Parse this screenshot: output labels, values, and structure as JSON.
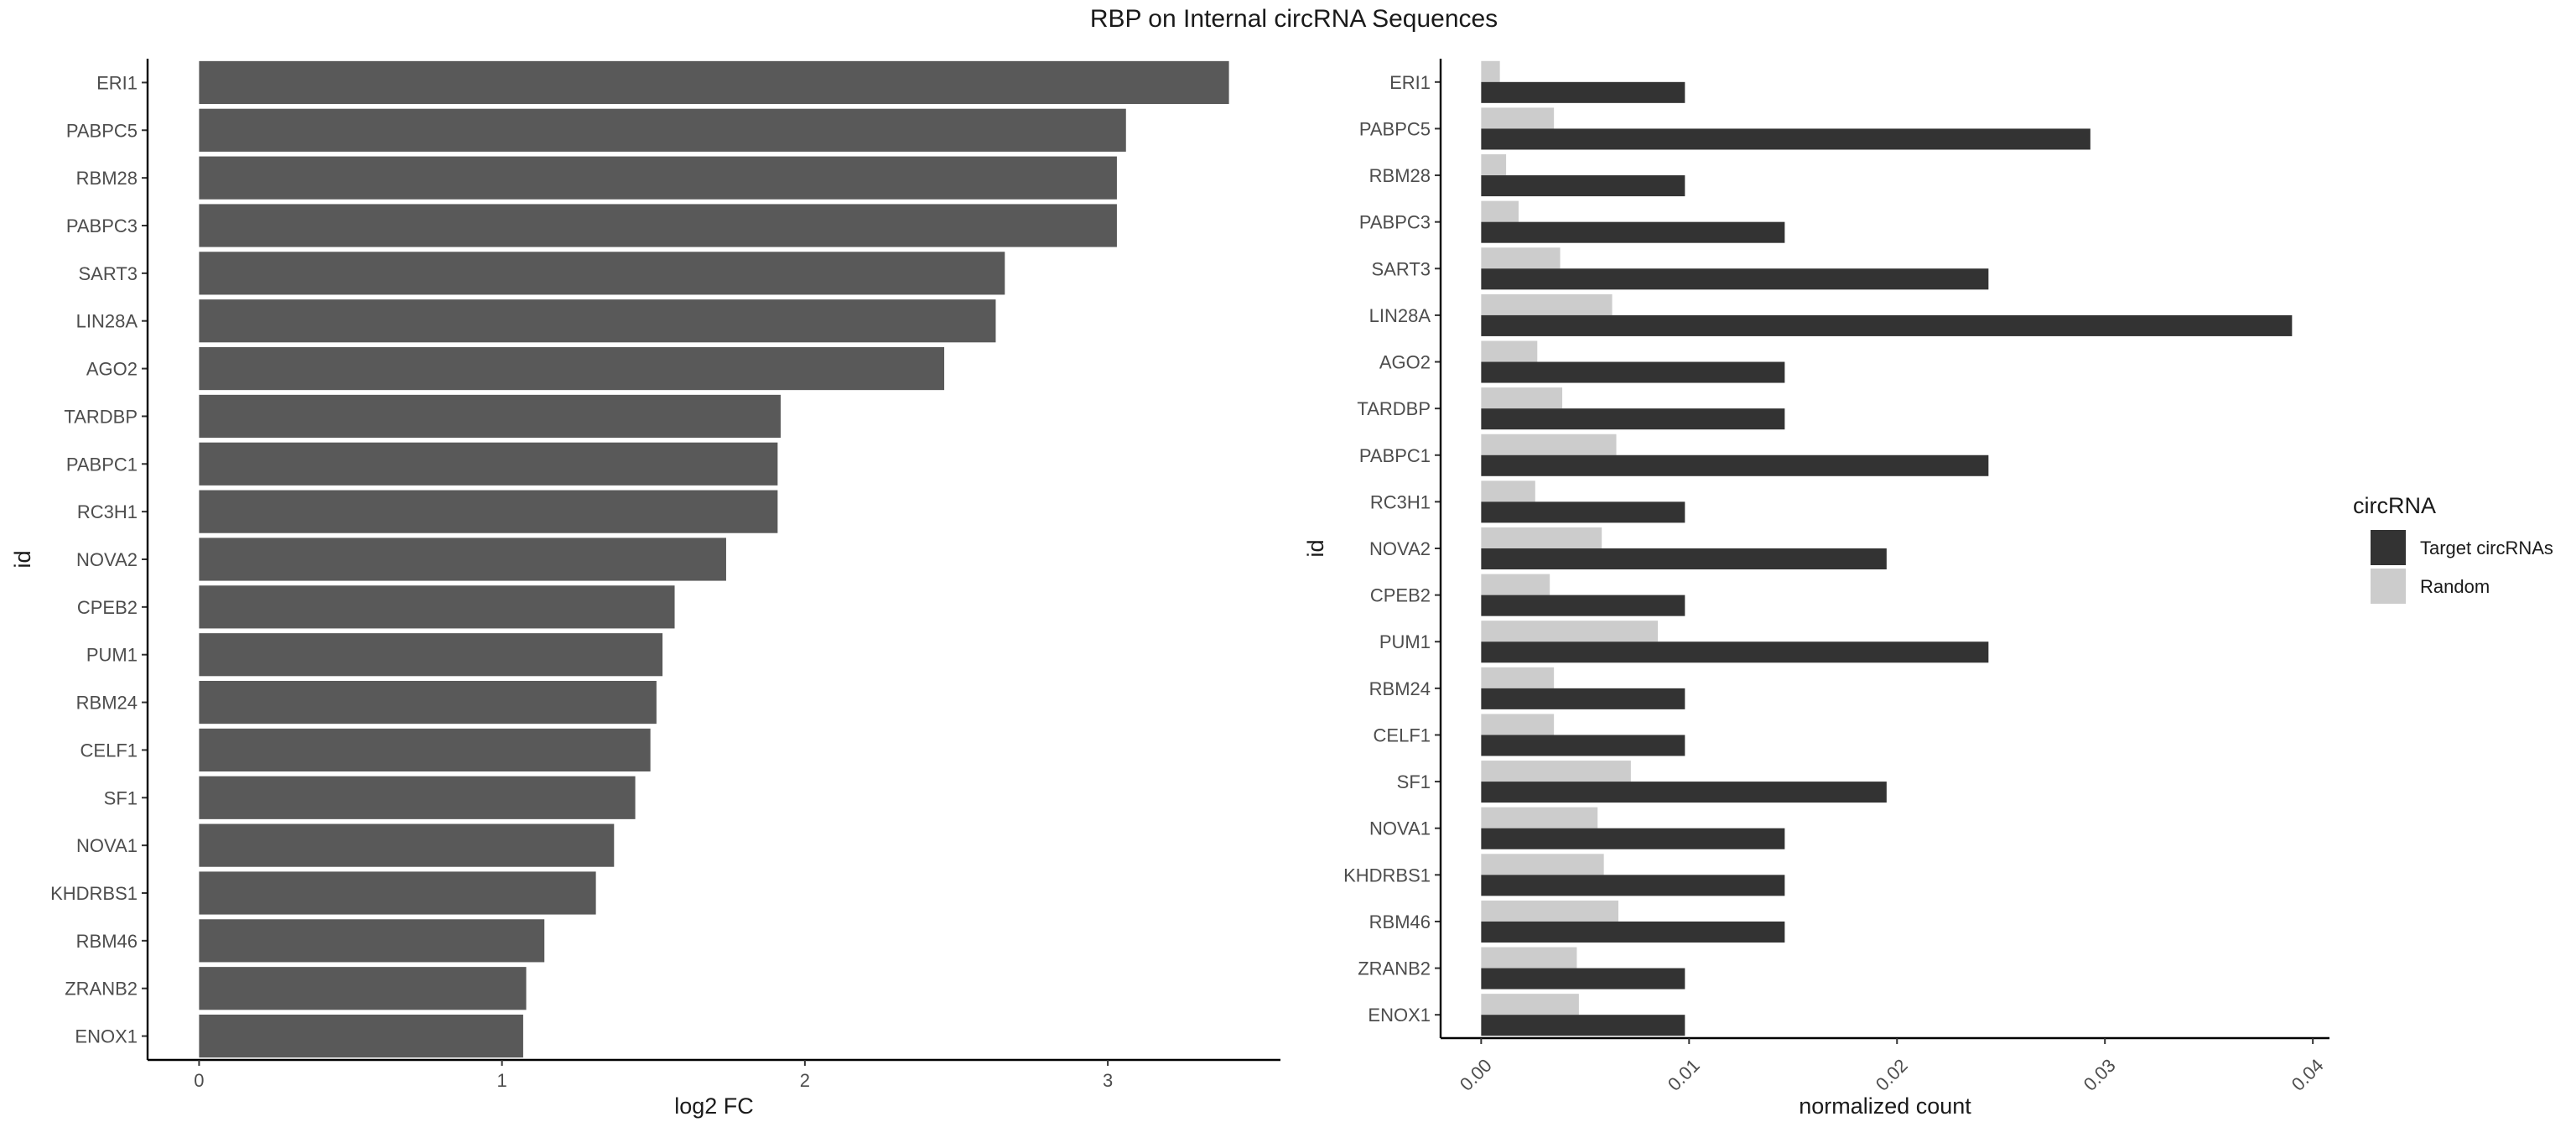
{
  "title": "RBP on Internal circRNA Sequences",
  "chart_data": [
    {
      "type": "bar",
      "orientation": "horizontal",
      "xlabel": "log2 FC",
      "ylabel": "id",
      "xlim": [
        -0.17,
        3.57
      ],
      "xticks": [
        "0",
        "1",
        "2",
        "3"
      ],
      "bar_color": "#595959",
      "categories": [
        "ERI1",
        "PABPC5",
        "RBM28",
        "PABPC3",
        "SART3",
        "LIN28A",
        "AGO2",
        "TARDBP",
        "PABPC1",
        "RC3H1",
        "NOVA2",
        "CPEB2",
        "PUM1",
        "RBM24",
        "CELF1",
        "SF1",
        "NOVA1",
        "KHDRBS1",
        "RBM46",
        "ZRANB2",
        "ENOX1"
      ],
      "values": [
        3.4,
        3.06,
        3.03,
        3.03,
        2.66,
        2.63,
        2.46,
        1.92,
        1.91,
        1.91,
        1.74,
        1.57,
        1.53,
        1.51,
        1.49,
        1.44,
        1.37,
        1.31,
        1.14,
        1.08,
        1.07
      ],
      "grid": false
    },
    {
      "type": "bar",
      "orientation": "horizontal",
      "grouped": true,
      "xlabel": "normalized count",
      "ylabel": "id",
      "xlim": [
        -0.00195,
        0.0408
      ],
      "xticks": [
        "0.00",
        "0.01",
        "0.02",
        "0.03",
        "0.04"
      ],
      "categories": [
        "ERI1",
        "PABPC5",
        "RBM28",
        "PABPC3",
        "SART3",
        "LIN28A",
        "AGO2",
        "TARDBP",
        "PABPC1",
        "RC3H1",
        "NOVA2",
        "CPEB2",
        "PUM1",
        "RBM24",
        "CELF1",
        "SF1",
        "NOVA1",
        "KHDRBS1",
        "RBM46",
        "ZRANB2",
        "ENOX1"
      ],
      "series": [
        {
          "name": "Target circRNAs",
          "color": "#333333",
          "values": [
            0.0098,
            0.0293,
            0.0098,
            0.0146,
            0.0244,
            0.039,
            0.0146,
            0.0146,
            0.0244,
            0.0098,
            0.0195,
            0.0098,
            0.0244,
            0.0098,
            0.0098,
            0.0195,
            0.0146,
            0.0146,
            0.0146,
            0.0098,
            0.0098
          ]
        },
        {
          "name": "Random",
          "color": "#cccccc",
          "values": [
            0.0009,
            0.0035,
            0.0012,
            0.0018,
            0.0038,
            0.0063,
            0.0027,
            0.0039,
            0.0065,
            0.0026,
            0.0058,
            0.0033,
            0.0085,
            0.0035,
            0.0035,
            0.0072,
            0.0056,
            0.0059,
            0.0066,
            0.0046,
            0.0047
          ]
        }
      ],
      "legend": {
        "title": "circRNA",
        "placement": "right"
      },
      "grid": false
    }
  ]
}
